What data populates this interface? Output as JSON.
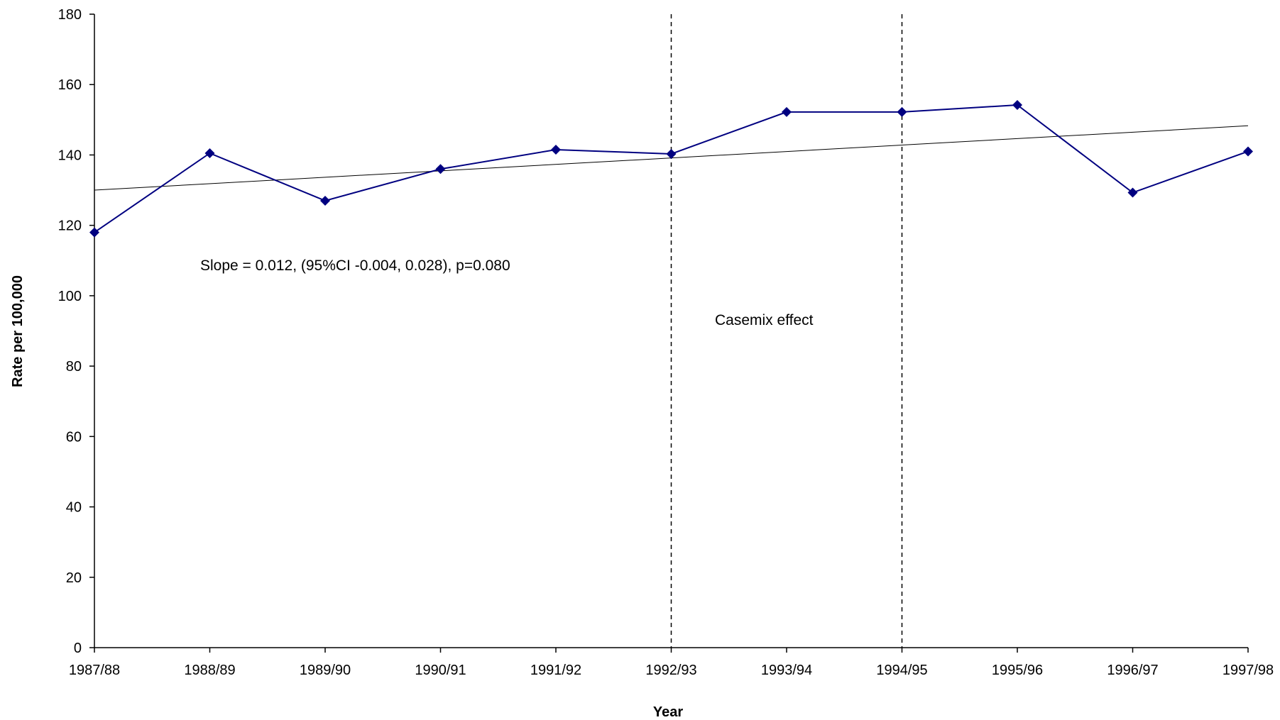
{
  "chart_data": {
    "type": "line",
    "title": "",
    "xlabel": "Year",
    "ylabel": "Rate per 100,000",
    "categories": [
      "1987/88",
      "1988/89",
      "1989/90",
      "1990/91",
      "1991/92",
      "1992/93",
      "1993/94",
      "1994/95",
      "1995/96",
      "1996/97",
      "1997/98"
    ],
    "series": [
      {
        "values": [
          118,
          140.5,
          127,
          136,
          141.5,
          140.3,
          152.2,
          152.2,
          154.2,
          129.3,
          141
        ]
      }
    ],
    "trendline": {
      "start": 130,
      "end": 148.3
    },
    "ylim": [
      0,
      180
    ],
    "yticks": [
      0,
      20,
      40,
      60,
      80,
      100,
      120,
      140,
      160,
      180
    ],
    "grid": false,
    "legend": "none",
    "reference_lines": [
      {
        "at_category": "1992/93",
        "style": "dashed"
      },
      {
        "at_category": "1994/95",
        "style": "dashed"
      }
    ],
    "annotations": {
      "slope_text": "Slope = 0.012, (95%CI -0.004, 0.028), p=0.080",
      "casemix_text": "Casemix effect"
    },
    "colors": {
      "series": "#000080",
      "trend": "#000000",
      "axis": "#000000",
      "reference": "#000000"
    }
  }
}
